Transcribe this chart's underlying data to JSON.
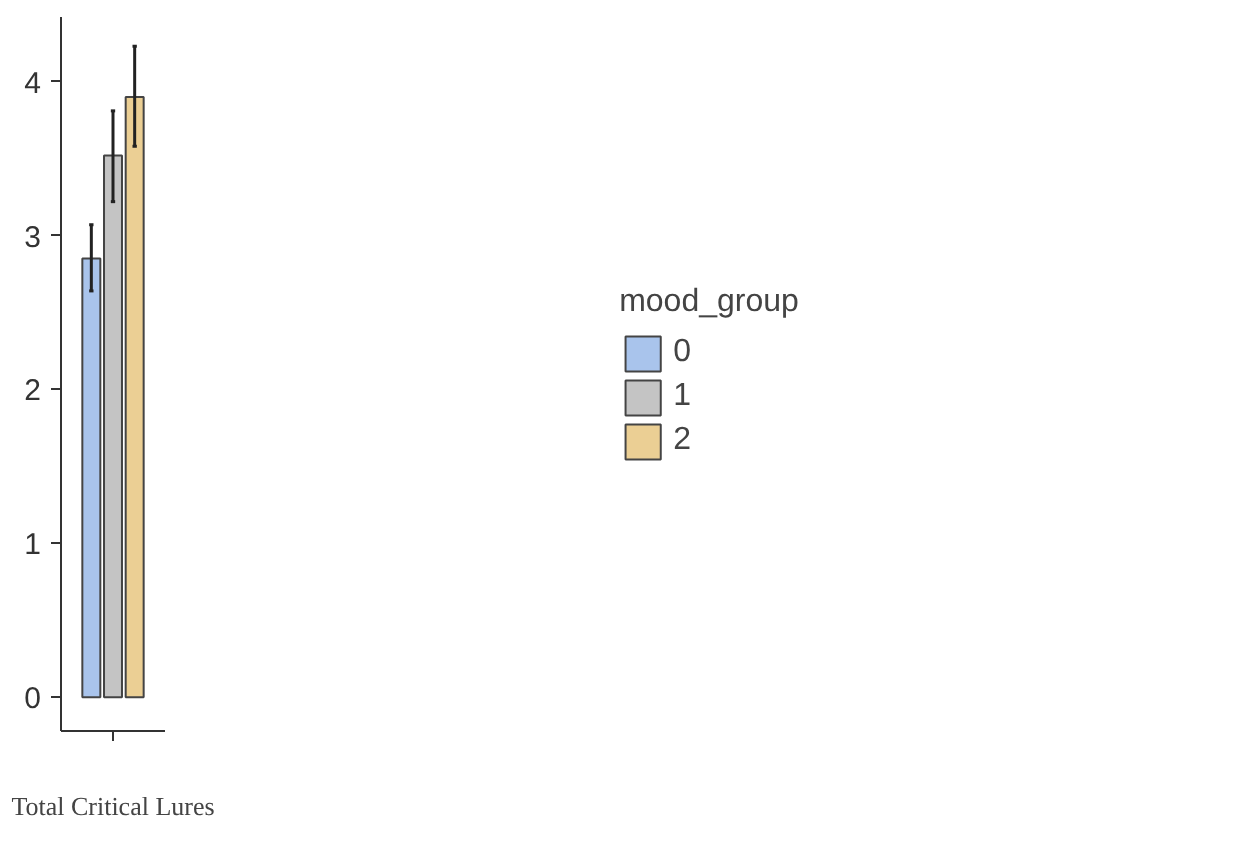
{
  "chart_data": {
    "type": "bar",
    "categories": [
      "Total Critical Lures"
    ],
    "legend_title": "mood_group",
    "series": [
      {
        "name": "0",
        "color": "#a9c4ec",
        "values": [
          2.85
        ],
        "errors": [
          [
            2.64,
            3.07
          ]
        ]
      },
      {
        "name": "1",
        "color": "#c4c4c4",
        "values": [
          3.52
        ],
        "errors": [
          [
            3.22,
            3.81
          ]
        ]
      },
      {
        "name": "2",
        "color": "#ebcf94",
        "values": [
          3.9
        ],
        "errors": [
          [
            3.58,
            4.23
          ]
        ]
      }
    ],
    "ylim": [
      -0.22,
      4.42
    ],
    "yticks": [
      0,
      1,
      2,
      3,
      4
    ],
    "grid": false,
    "legend": "right"
  }
}
